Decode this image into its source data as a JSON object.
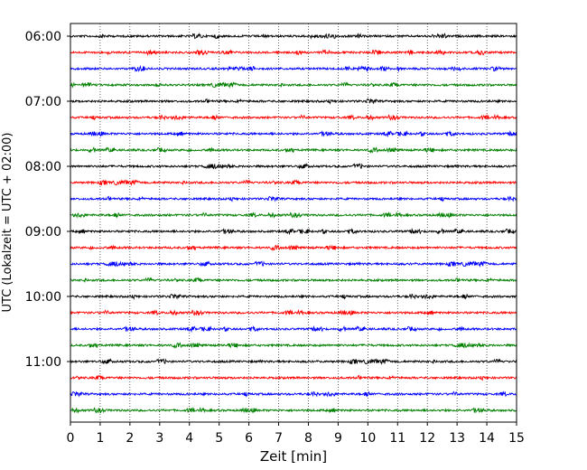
{
  "chart_data": {
    "type": "line",
    "title": "",
    "xlabel": "Zeit  [min]",
    "ylabel": "UTC (Lokalzeit = UTC + 02:00)",
    "xlim": [
      0,
      15
    ],
    "x_ticks": [
      0,
      1,
      2,
      3,
      4,
      5,
      6,
      7,
      8,
      9,
      10,
      11,
      12,
      13,
      14,
      15
    ],
    "y_tick_labels": [
      "06:00",
      "07:00",
      "08:00",
      "09:00",
      "10:00",
      "11:00"
    ],
    "minutes_per_trace": 15,
    "trace_start_times": [
      "06:00",
      "06:15",
      "06:30",
      "06:45",
      "07:00",
      "07:15",
      "07:30",
      "07:45",
      "08:00",
      "08:15",
      "08:30",
      "08:45",
      "09:00",
      "09:15",
      "09:30",
      "09:45",
      "10:00",
      "10:15",
      "10:30",
      "10:45",
      "11:00",
      "11:15",
      "11:30",
      "11:45"
    ],
    "trace_colors": [
      "#000000",
      "#ff0000",
      "#0000ff",
      "#008000"
    ],
    "x_grid": "dotted-vertical",
    "legend": "none"
  }
}
